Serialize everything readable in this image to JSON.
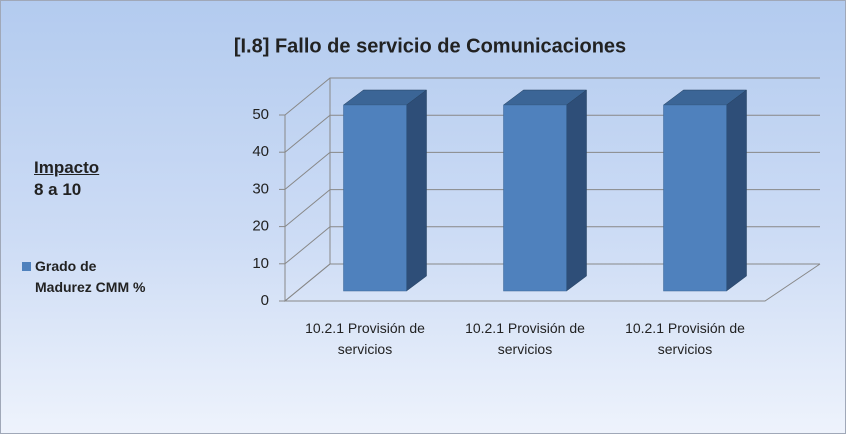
{
  "chart_data": {
    "type": "bar3d",
    "title": "[I.8] Fallo de servicio de Comunicaciones",
    "annotations": [
      "Impacto",
      "8 a 10"
    ],
    "categories": [
      "10.2.1 Provisión de servicios",
      "10.2.1 Provisión de servicios",
      "10.2.1 Provisión de servicios"
    ],
    "series": [
      {
        "name": "Grado de Madurez CMM %",
        "color": "#4f81bd",
        "values": [
          50,
          50,
          50
        ]
      }
    ],
    "ylim": [
      0,
      50
    ],
    "yticks": [
      0,
      10,
      20,
      30,
      40,
      50
    ],
    "grid": true,
    "legend": "left"
  }
}
